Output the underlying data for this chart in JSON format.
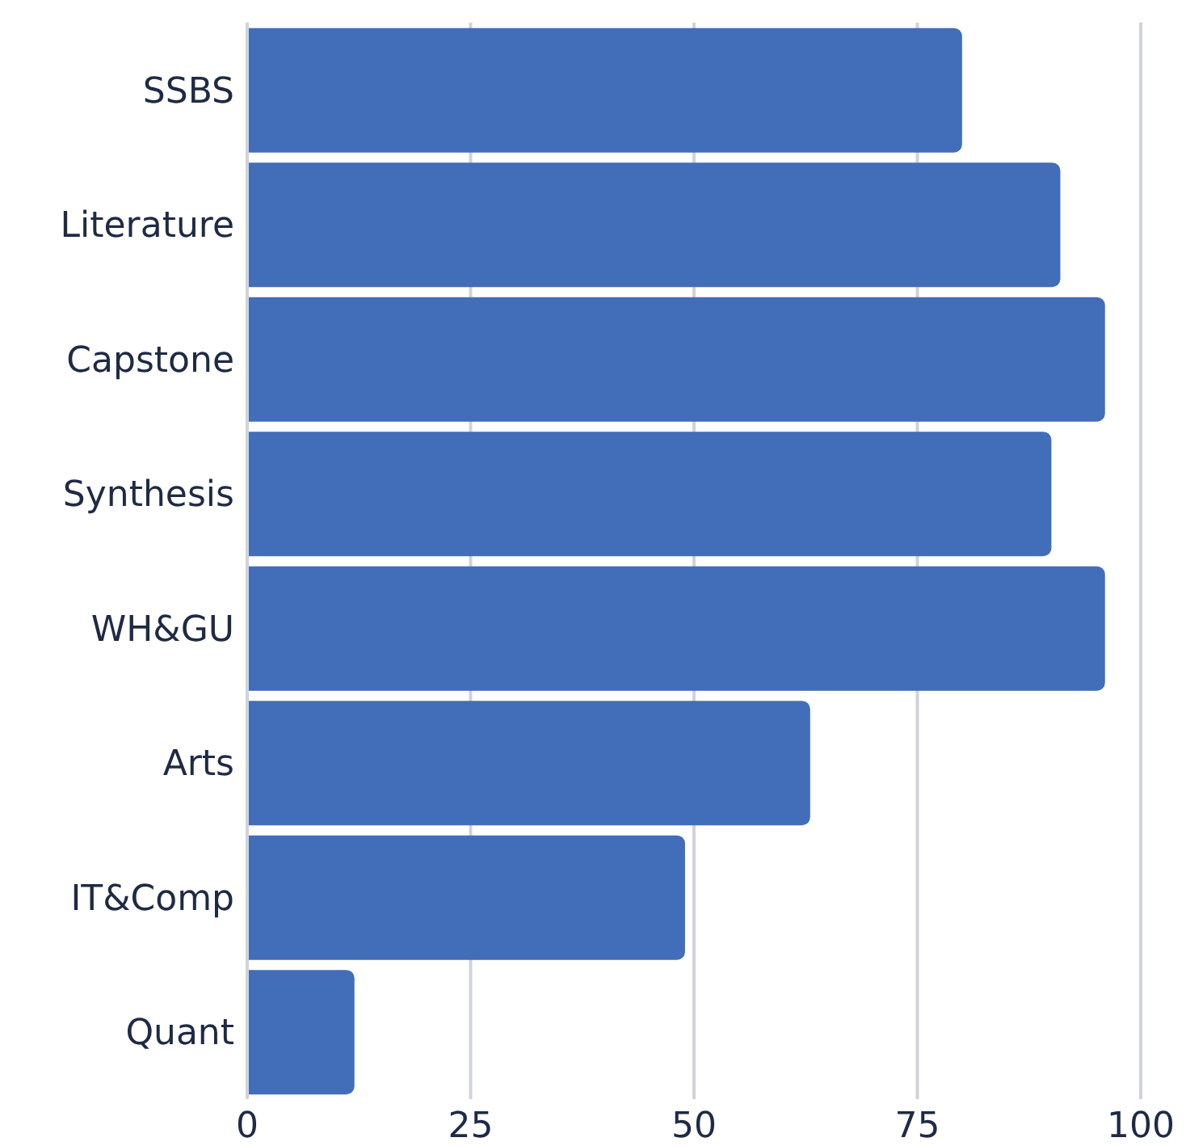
{
  "chart_data": {
    "type": "bar",
    "orientation": "horizontal",
    "categories": [
      "SSBS",
      "Literature",
      "Capstone",
      "Synthesis",
      "WH&GU",
      "Arts",
      "IT&Comp",
      "Quant"
    ],
    "values": [
      80,
      91,
      96,
      90,
      96,
      63,
      49,
      12
    ],
    "color": "#426db9",
    "xlim": [
      0,
      100
    ],
    "xticks": [
      0,
      25,
      50,
      75,
      100
    ],
    "grid": "x"
  }
}
